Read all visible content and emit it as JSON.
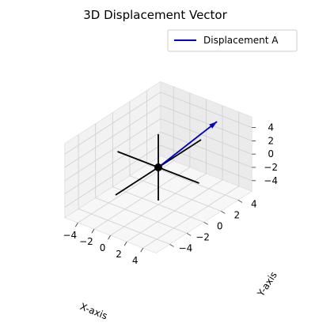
{
  "chart_data": {
    "type": "line3d",
    "title": "3D Displacement Vector",
    "xlabel": "X-axis",
    "ylabel": "Y-axis",
    "zlabel": "",
    "xlim": [
      -5,
      5
    ],
    "ylim": [
      -5,
      5
    ],
    "zlim": [
      -5,
      5
    ],
    "x_ticks": [
      "−4",
      "−2",
      "0",
      "2",
      "4"
    ],
    "y_ticks": [
      "−4",
      "−2",
      "0",
      "2",
      "4"
    ],
    "z_ticks": [
      "−4",
      "−2",
      "0",
      "2",
      "4"
    ],
    "grid": true,
    "legend_position": "top-right",
    "series": [
      {
        "name": "Displacement A",
        "color": "#0000cc",
        "start": [
          0,
          0,
          0
        ],
        "end": [
          3,
          4,
          5
        ]
      }
    ],
    "reference_axes": {
      "color": "#000000",
      "lines": [
        {
          "from": [
            -5,
            0,
            0
          ],
          "to": [
            5,
            0,
            0
          ]
        },
        {
          "from": [
            0,
            -5,
            0
          ],
          "to": [
            0,
            5,
            0
          ]
        },
        {
          "from": [
            0,
            0,
            -5
          ],
          "to": [
            0,
            0,
            5
          ]
        }
      ]
    },
    "origin_point": [
      0,
      0,
      0
    ]
  }
}
